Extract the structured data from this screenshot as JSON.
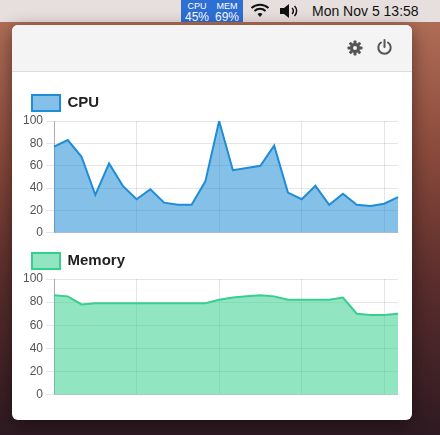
{
  "menu_bar": {
    "cpu_label": "CPU",
    "cpu_value": "45%",
    "mem_label": "MEM",
    "mem_value": "69%",
    "clock": "Mon Nov 5 13:58"
  },
  "chart_data": [
    {
      "type": "line",
      "categories": [
        null,
        null,
        null,
        null,
        null,
        null,
        null,
        null,
        null,
        null,
        null,
        null,
        null,
        null,
        null,
        null,
        null,
        null,
        null,
        null,
        null,
        null,
        null,
        null,
        null,
        null
      ],
      "series": [
        {
          "name": "CPU",
          "color": "#1f8dd6",
          "values": [
            77,
            83,
            68,
            34,
            62,
            42,
            30,
            39,
            27,
            25,
            25,
            46,
            100,
            56,
            58,
            60,
            78,
            36,
            30,
            42,
            25,
            35,
            25,
            24,
            26,
            32
          ]
        }
      ],
      "ylim": [
        0,
        100
      ],
      "yticks": [
        0,
        20,
        40,
        60,
        80,
        100
      ],
      "grid": true,
      "legend": "top-left",
      "tick_labels": "y"
    },
    {
      "type": "line",
      "categories": [
        null,
        null,
        null,
        null,
        null,
        null,
        null,
        null,
        null,
        null,
        null,
        null,
        null,
        null,
        null,
        null,
        null,
        null,
        null,
        null,
        null,
        null,
        null,
        null,
        null,
        null
      ],
      "series": [
        {
          "name": "Memory",
          "color": "#38cf8e",
          "values": [
            86,
            85,
            78,
            79,
            79,
            79,
            79,
            79,
            79,
            79,
            79,
            79,
            82,
            84,
            85,
            86,
            85,
            82,
            82,
            82,
            82,
            84,
            70,
            69,
            69,
            70
          ]
        }
      ],
      "ylim": [
        0,
        100
      ],
      "yticks": [
        0,
        20,
        40,
        60,
        80,
        100
      ],
      "grid": true,
      "legend": "top-left",
      "tick_labels": "y"
    }
  ]
}
